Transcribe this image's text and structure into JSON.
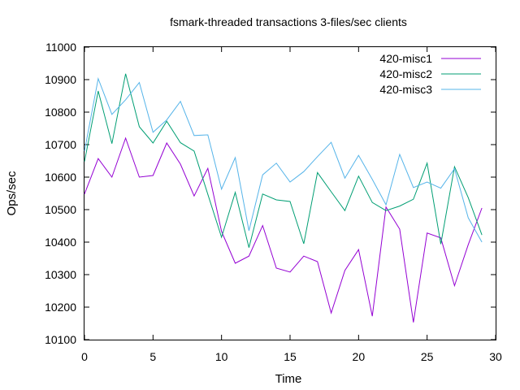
{
  "chart_data": {
    "type": "line",
    "title": "fsmark-threaded transactions 3-files/sec clients",
    "xlabel": "Time",
    "ylabel": "Ops/sec",
    "xlim": [
      0,
      30
    ],
    "ylim": [
      10100,
      11000
    ],
    "xticks": [
      0,
      5,
      10,
      15,
      20,
      25,
      30
    ],
    "yticks": [
      10100,
      10200,
      10300,
      10400,
      10500,
      10600,
      10700,
      10800,
      10900,
      11000
    ],
    "grid": false,
    "legend_position": "top-right",
    "x": [
      0,
      1,
      2,
      3,
      4,
      5,
      6,
      7,
      8,
      9,
      10,
      11,
      12,
      13,
      14,
      15,
      16,
      17,
      18,
      19,
      20,
      21,
      22,
      23,
      24,
      25,
      26,
      27,
      28,
      29
    ],
    "series": [
      {
        "name": "420-misc1",
        "color": "#9400d3",
        "values": [
          10548,
          10657,
          10600,
          10720,
          10600,
          10605,
          10705,
          10640,
          10542,
          10627,
          10433,
          10335,
          10357,
          10451,
          10320,
          10308,
          10357,
          10340,
          10182,
          10313,
          10377,
          10172,
          10508,
          10440,
          10153,
          10428,
          10413,
          10266,
          10392,
          10505
        ]
      },
      {
        "name": "420-misc2",
        "color": "#009e73",
        "values": [
          10648,
          10865,
          10703,
          10918,
          10755,
          10705,
          10772,
          10706,
          10680,
          10547,
          10415,
          10553,
          10383,
          10548,
          10530,
          10525,
          10395,
          10614,
          10555,
          10497,
          10603,
          10522,
          10497,
          10511,
          10532,
          10643,
          10394,
          10632,
          10537,
          10422
        ]
      },
      {
        "name": "420-misc3",
        "color": "#56b4e9",
        "values": [
          10680,
          10903,
          10793,
          10838,
          10891,
          10738,
          10776,
          10833,
          10728,
          10730,
          10563,
          10660,
          10435,
          10607,
          10643,
          10585,
          10617,
          10663,
          10707,
          10597,
          10667,
          10593,
          10515,
          10670,
          10568,
          10585,
          10566,
          10626,
          10475,
          10400
        ]
      }
    ]
  }
}
